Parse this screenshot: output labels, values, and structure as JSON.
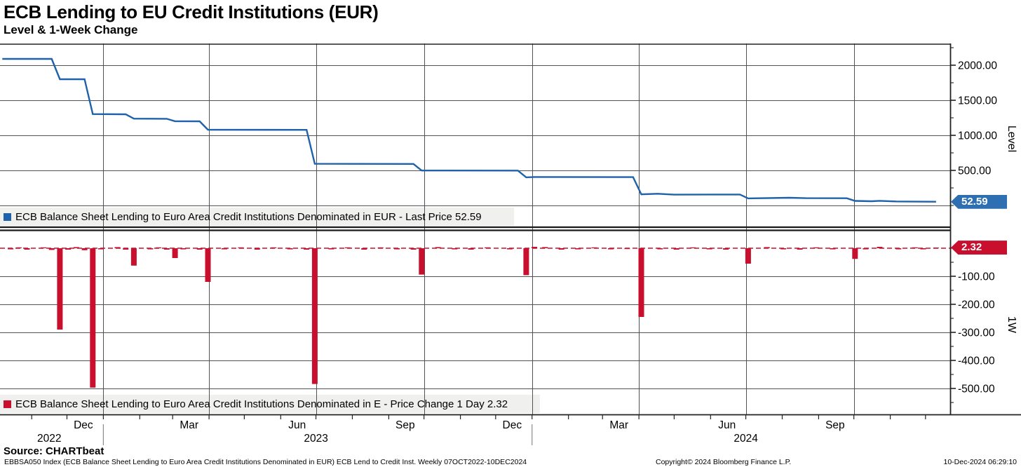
{
  "header": {
    "title": "ECB Lending to EU Credit Institutions (EUR)",
    "subtitle": "Level & 1-Week Change"
  },
  "level_panel": {
    "legend": "ECB Balance Sheet Lending to Euro Area Credit Institutions Denominated in EUR - Last Price 52.59",
    "axis_title": "Level",
    "last_price": "52.59",
    "color": "#1f62aa",
    "tag_color": "#2e6fb2"
  },
  "change_panel": {
    "legend": "ECB Balance Sheet Lending to Euro Area Credit Institutions Denominated in E - Price Change 1 Day 2.32",
    "axis_title": "1W",
    "last_price": "2.32",
    "color": "#c8102e"
  },
  "footer": {
    "source": "Source: CHARTbeat",
    "description": "EBBSA050 Index (ECB Balance Sheet Lending to Euro Area Credit Institutions Denominated in EUR) ECB Lend to Credit Inst.  Weekly 07OCT2022-10DEC2024",
    "copyright": "Copyright© 2024 Bloomberg Finance L.P.",
    "timestamp": "10-Dec-2024 06:29:10"
  },
  "x_axis": {
    "domain": [
      "2022-10-05",
      "2024-12-22"
    ],
    "gridlines": [
      "2023-01-01",
      "2023-04-01",
      "2023-07-01",
      "2023-10-01",
      "2024-01-01",
      "2024-04-01",
      "2024-07-01",
      "2024-10-01"
    ],
    "month_labels": [
      {
        "date": "2022-12-15",
        "label": "Dec"
      },
      {
        "date": "2023-03-15",
        "label": "Mar"
      },
      {
        "date": "2023-06-15",
        "label": "Jun"
      },
      {
        "date": "2023-09-15",
        "label": "Sep"
      },
      {
        "date": "2023-12-15",
        "label": "Dec"
      },
      {
        "date": "2024-03-15",
        "label": "Mar"
      },
      {
        "date": "2024-06-15",
        "label": "Jun"
      },
      {
        "date": "2024-09-15",
        "label": "Sep"
      }
    ],
    "year_labels": [
      {
        "date": "2022-11-16",
        "label": "2022"
      },
      {
        "date": "2023-07-01",
        "label": "2023"
      },
      {
        "date": "2024-07-01",
        "label": "2024"
      }
    ],
    "year_separators": [
      "2023-01-01",
      "2024-01-01"
    ]
  },
  "chart_data": [
    {
      "type": "line",
      "title": "Level",
      "series_name": "ECB Balance Sheet Lending to Euro Area Credit Institutions Denominated in EUR",
      "last_price": 52.59,
      "color": "#1f62aa",
      "ylim": [
        -330,
        2310
      ],
      "yticks": [
        2000,
        1500,
        1000,
        500
      ],
      "gridline_values": [
        2000,
        1500,
        1000,
        500,
        0
      ],
      "grid": true,
      "legend_position": "bottom-left",
      "points": [
        [
          "2022-10-07",
          2090
        ],
        [
          "2022-11-18",
          2090
        ],
        [
          "2022-11-25",
          1800
        ],
        [
          "2022-12-16",
          1800
        ],
        [
          "2022-12-23",
          1303
        ],
        [
          "2023-01-20",
          1300
        ],
        [
          "2023-01-27",
          1238
        ],
        [
          "2023-02-24",
          1236
        ],
        [
          "2023-03-03",
          1201
        ],
        [
          "2023-03-24",
          1200
        ],
        [
          "2023-03-31",
          1080
        ],
        [
          "2023-06-23",
          1078
        ],
        [
          "2023-06-30",
          594
        ],
        [
          "2023-09-22",
          592
        ],
        [
          "2023-09-29",
          498
        ],
        [
          "2023-12-20",
          497
        ],
        [
          "2023-12-27",
          401
        ],
        [
          "2024-01-03",
          406
        ],
        [
          "2024-03-27",
          404
        ],
        [
          "2024-04-03",
          159
        ],
        [
          "2024-04-17",
          167
        ],
        [
          "2024-05-01",
          154
        ],
        [
          "2024-06-26",
          156
        ],
        [
          "2024-07-03",
          101
        ],
        [
          "2024-08-07",
          110
        ],
        [
          "2024-08-21",
          104
        ],
        [
          "2024-09-25",
          103
        ],
        [
          "2024-10-02",
          65
        ],
        [
          "2024-10-16",
          60
        ],
        [
          "2024-10-23",
          66
        ],
        [
          "2024-11-06",
          57
        ],
        [
          "2024-11-27",
          54
        ],
        [
          "2024-12-10",
          52.59
        ]
      ]
    },
    {
      "type": "bar",
      "title": "1W",
      "series_name": "ECB Balance Sheet Lending to Euro Area Credit Institutions Denominated in E - Price Change 1 Day",
      "last_value": 2.32,
      "color": "#c8102e",
      "ylim": [
        -592,
        60
      ],
      "yticks": [
        -100,
        -200,
        -300,
        -400,
        -500
      ],
      "zero_line_color": "#c8102e",
      "zero_line_style": "dashed",
      "legend_position": "bottom-left",
      "bars": [
        [
          "2022-10-14",
          -4
        ],
        [
          "2022-10-21",
          3
        ],
        [
          "2022-10-28",
          -5
        ],
        [
          "2022-11-11",
          3
        ],
        [
          "2022-11-18",
          -6
        ],
        [
          "2022-11-25",
          -290
        ],
        [
          "2022-12-02",
          -5
        ],
        [
          "2022-12-09",
          4
        ],
        [
          "2022-12-16",
          -7
        ],
        [
          "2022-12-23",
          -497
        ],
        [
          "2022-12-30",
          -4
        ],
        [
          "2023-01-13",
          4
        ],
        [
          "2023-01-20",
          -5
        ],
        [
          "2023-01-27",
          -62
        ],
        [
          "2023-02-10",
          -4
        ],
        [
          "2023-02-17",
          3
        ],
        [
          "2023-02-24",
          -5
        ],
        [
          "2023-03-03",
          -35
        ],
        [
          "2023-03-10",
          -4
        ],
        [
          "2023-03-24",
          -5
        ],
        [
          "2023-03-31",
          -120
        ],
        [
          "2023-04-14",
          -4
        ],
        [
          "2023-04-28",
          3
        ],
        [
          "2023-05-12",
          -5
        ],
        [
          "2023-05-26",
          3
        ],
        [
          "2023-06-09",
          -4
        ],
        [
          "2023-06-23",
          -5
        ],
        [
          "2023-06-30",
          -484
        ],
        [
          "2023-07-14",
          -4
        ],
        [
          "2023-07-28",
          3
        ],
        [
          "2023-08-11",
          -5
        ],
        [
          "2023-08-25",
          3
        ],
        [
          "2023-09-08",
          -4
        ],
        [
          "2023-09-22",
          -5
        ],
        [
          "2023-09-29",
          -94
        ],
        [
          "2023-10-13",
          4
        ],
        [
          "2023-10-27",
          -4
        ],
        [
          "2023-11-10",
          -5
        ],
        [
          "2023-11-24",
          3
        ],
        [
          "2023-12-13",
          -4
        ],
        [
          "2023-12-27",
          -96
        ],
        [
          "2024-01-03",
          5
        ],
        [
          "2024-01-12",
          4
        ],
        [
          "2024-01-26",
          -5
        ],
        [
          "2024-02-09",
          -4
        ],
        [
          "2024-02-23",
          3
        ],
        [
          "2024-03-08",
          -4
        ],
        [
          "2024-03-22",
          -3
        ],
        [
          "2024-04-03",
          -245
        ],
        [
          "2024-04-19",
          -4
        ],
        [
          "2024-05-03",
          -5
        ],
        [
          "2024-05-17",
          3
        ],
        [
          "2024-05-31",
          -4
        ],
        [
          "2024-06-14",
          -5
        ],
        [
          "2024-07-03",
          -55
        ],
        [
          "2024-07-19",
          4
        ],
        [
          "2024-08-02",
          -4
        ],
        [
          "2024-08-16",
          -5
        ],
        [
          "2024-08-30",
          3
        ],
        [
          "2024-09-13",
          -4
        ],
        [
          "2024-10-02",
          -38
        ],
        [
          "2024-10-11",
          -4
        ],
        [
          "2024-10-23",
          5
        ],
        [
          "2024-11-08",
          -4
        ],
        [
          "2024-11-22",
          3
        ],
        [
          "2024-11-29",
          -4
        ],
        [
          "2024-12-10",
          2.32
        ]
      ]
    }
  ]
}
